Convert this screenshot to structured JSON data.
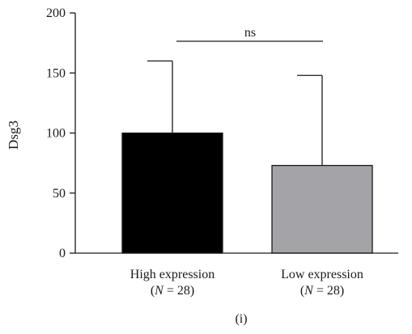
{
  "chart_data": {
    "type": "bar",
    "ylabel": "Dsg3",
    "ylim": [
      0,
      200
    ],
    "yticks": [
      0,
      50,
      100,
      150,
      200
    ],
    "categories": [
      {
        "label": "High expression",
        "n_label": "(N = 28)",
        "n_prefix": "(",
        "n_var": "N",
        "n_rest": " = 28)"
      },
      {
        "label": "Low expression",
        "n_label": "(N = 28)",
        "n_prefix": "(",
        "n_var": "N",
        "n_rest": " = 28)"
      }
    ],
    "values": [
      100,
      73
    ],
    "error_upper": [
      160,
      148
    ],
    "colors": [
      "#000000",
      "#a3a3a8"
    ],
    "significance": {
      "label": "ns",
      "between": [
        0,
        1
      ]
    },
    "panel_label": "(i)",
    "grid": false,
    "legend": "none"
  }
}
